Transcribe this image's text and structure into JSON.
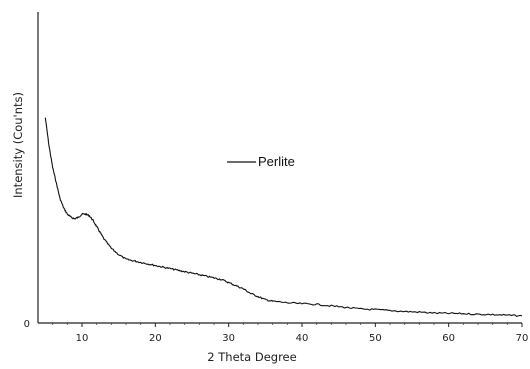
{
  "chart_data": {
    "type": "line",
    "title": "",
    "xlabel": "2 Theta Degree",
    "ylabel": "Intensity (Cou'nts)",
    "xlim": [
      4,
      70
    ],
    "ylim": [
      0,
      100
    ],
    "x_ticks": [
      10,
      20,
      30,
      40,
      50,
      60,
      70
    ],
    "x_tick_labels": [
      "10",
      "20",
      "30",
      "40",
      "50",
      "60",
      "70"
    ],
    "y_tick_labels": [
      "0"
    ],
    "grid": false,
    "legend": "center",
    "series": [
      {
        "name": "Perlite",
        "color": "#111111",
        "x": [
          5,
          5.5,
          6,
          6.5,
          7,
          7.5,
          8,
          8.5,
          9,
          9.5,
          10,
          10.5,
          11,
          11.5,
          12,
          12.5,
          13,
          14,
          15,
          16,
          17,
          18,
          19,
          20,
          21,
          22,
          23,
          24,
          25,
          26,
          27,
          28,
          29,
          30,
          31,
          32,
          33,
          34,
          35,
          36,
          38,
          40,
          42,
          44,
          46,
          48,
          50,
          52,
          54,
          56,
          58,
          60,
          62,
          64,
          66,
          68,
          70
        ],
        "y": [
          66,
          57,
          50,
          45,
          40,
          37,
          35,
          34,
          33.5,
          34,
          35,
          35,
          34.5,
          33,
          31,
          29,
          27,
          24,
          22,
          20.5,
          20,
          19.5,
          19,
          18.5,
          18,
          17.5,
          17,
          16.5,
          16,
          15.5,
          15,
          14.5,
          14,
          13,
          12,
          11,
          9.5,
          8.5,
          7.5,
          7,
          6.5,
          6.2,
          6,
          5.5,
          5,
          4.5,
          4.3,
          4,
          3.7,
          3.5,
          3.2,
          3.1,
          3,
          2.8,
          2.7,
          2.5,
          2.3
        ]
      }
    ]
  }
}
